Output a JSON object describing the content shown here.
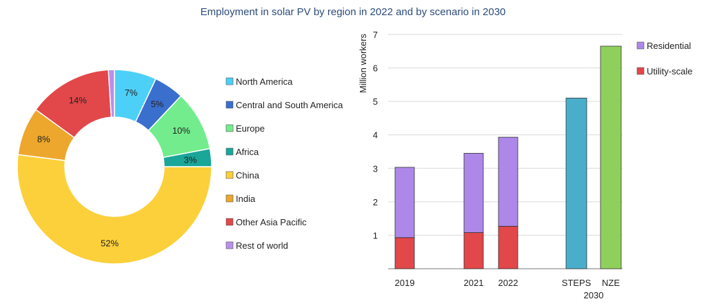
{
  "title": "Employment in solar PV by region in 2022 and by scenario in 2030",
  "chart_data": [
    {
      "type": "pie",
      "donut": true,
      "slices": [
        {
          "name": "North America",
          "value": 7,
          "label": "7%",
          "color": "#4dd0f7"
        },
        {
          "name": "Central and South America",
          "value": 5,
          "label": "5%",
          "color": "#3a6fce"
        },
        {
          "name": "Europe",
          "value": 10,
          "label": "10%",
          "color": "#72ec8d"
        },
        {
          "name": "Africa",
          "value": 3,
          "label": "3%",
          "color": "#1aa699"
        },
        {
          "name": "China",
          "value": 52,
          "label": "52%",
          "color": "#fbd03a"
        },
        {
          "name": "India",
          "value": 8,
          "label": "8%",
          "color": "#eca72c"
        },
        {
          "name": "Other Asia Pacific",
          "value": 14,
          "label": "14%",
          "color": "#e2474a"
        },
        {
          "name": "Rest of world",
          "value": 1,
          "label": "",
          "color": "#b890ec"
        }
      ],
      "legend_position": "right"
    },
    {
      "type": "bar",
      "stacked": true,
      "ylabel": "Million workers",
      "ylim": [
        0,
        7
      ],
      "yticks": [
        "1",
        "2",
        "3",
        "4",
        "5",
        "6",
        "7"
      ],
      "grid": true,
      "legend_position": "top-right",
      "categories": [
        "2019",
        "2021",
        "2022",
        "STEPS",
        "NZE"
      ],
      "group_label": "2030",
      "series": [
        {
          "name": "Utility-scale",
          "color": "#e2474a",
          "values": [
            0.93,
            1.08,
            1.27,
            null,
            null
          ]
        },
        {
          "name": "Residential",
          "color": "#ad88e9",
          "values": [
            2.1,
            2.37,
            2.66,
            null,
            null
          ]
        }
      ],
      "scenario_bars": [
        {
          "category": "STEPS",
          "value": 5.1,
          "color": "#4aaecb"
        },
        {
          "category": "NZE",
          "value": 6.65,
          "color": "#8fd05c"
        }
      ]
    }
  ]
}
